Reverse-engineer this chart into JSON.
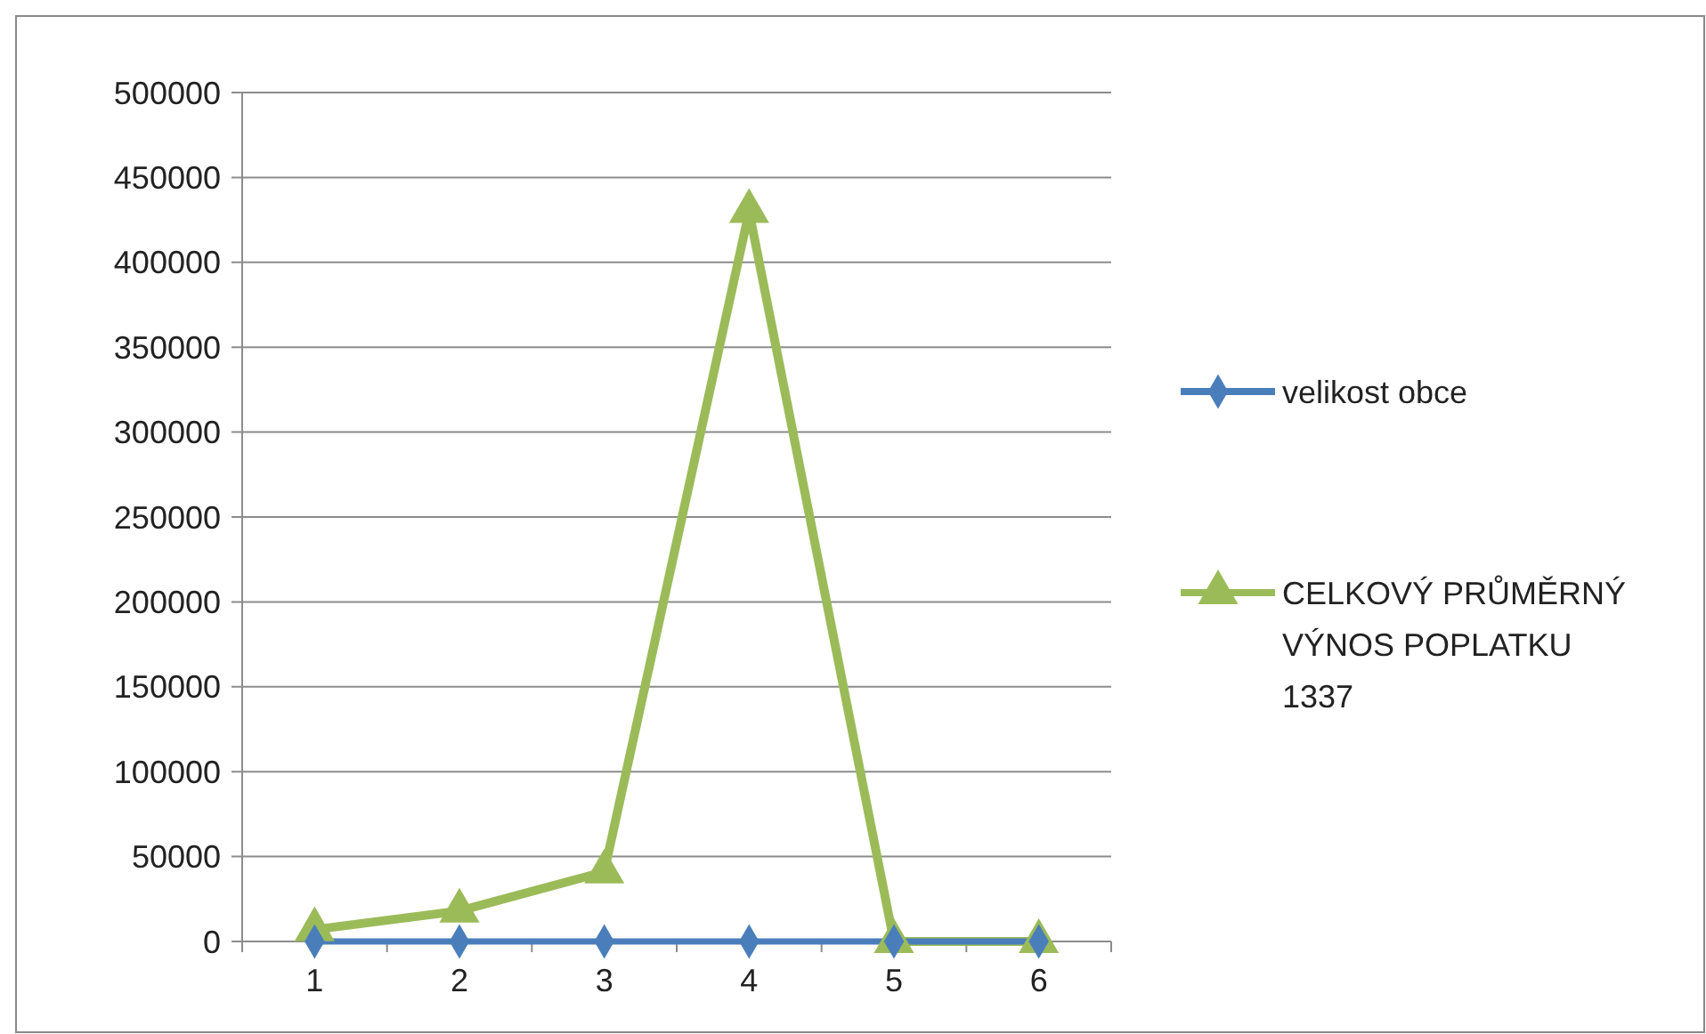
{
  "chart_data": {
    "type": "line",
    "categories": [
      "1",
      "2",
      "3",
      "4",
      "5",
      "6"
    ],
    "series": [
      {
        "name": "velikost obce",
        "color": "#4a7ebb",
        "values": [
          0,
          0,
          0,
          0,
          0,
          0
        ],
        "marker": "diamond"
      },
      {
        "name": "CELKOVÝ PRŮMĚRNÝ VÝNOS POPLATKU 1337",
        "color": "#9bbb59",
        "values": [
          7000,
          18000,
          41000,
          430000,
          0,
          0
        ],
        "marker": "triangle"
      }
    ],
    "ylim": [
      0,
      500000
    ],
    "yticks": [
      0,
      50000,
      100000,
      150000,
      200000,
      250000,
      300000,
      350000,
      400000,
      450000,
      500000
    ],
    "grid": "y",
    "legend": "right",
    "line_style": "solid"
  }
}
